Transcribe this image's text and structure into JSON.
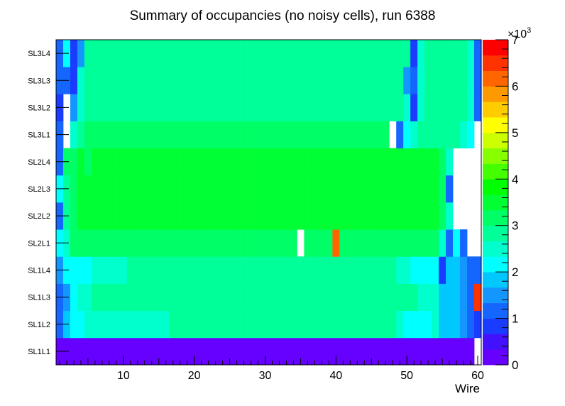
{
  "chart_data": {
    "type": "heatmap",
    "title": "Summary of occupancies (no noisy cells), run 6388",
    "xlabel": "Wire",
    "ylabel": "",
    "xlim": [
      0.5,
      60.5
    ],
    "x_ticks": [
      10,
      20,
      30,
      40,
      50,
      60
    ],
    "y_categories": [
      "SL1L1",
      "SL1L2",
      "SL1L3",
      "SL1L4",
      "SL2L1",
      "SL2L2",
      "SL2L3",
      "SL2L4",
      "SL3L1",
      "SL3L2",
      "SL3L3",
      "SL3L4"
    ],
    "z_range": [
      0,
      7000
    ],
    "z_multiplier_label": "×10",
    "z_multiplier_exponent": "3",
    "z_ticks": [
      0,
      1,
      2,
      3,
      4,
      5,
      6,
      7
    ],
    "palette": [
      "#6600ff",
      "#4411ff",
      "#1a3cff",
      "#1466ff",
      "#1496ff",
      "#00c8ff",
      "#00ffff",
      "#00ffcc",
      "#00ff99",
      "#00ff66",
      "#00ff33",
      "#00ff00",
      "#44ff00",
      "#88ff00",
      "#ccff00",
      "#ffff00",
      "#ffcc00",
      "#ff9900",
      "#ff6600",
      "#ff3300",
      "#ff0000"
    ],
    "rows": [
      {
        "layer": "SL1L1",
        "values": [
          300,
          300,
          300,
          300,
          300,
          300,
          300,
          300,
          300,
          300,
          300,
          300,
          300,
          300,
          300,
          300,
          300,
          300,
          300,
          300,
          300,
          300,
          300,
          300,
          300,
          300,
          300,
          300,
          300,
          300,
          300,
          300,
          300,
          300,
          300,
          300,
          300,
          300,
          300,
          300,
          300,
          300,
          300,
          300,
          300,
          300,
          300,
          300,
          300,
          300,
          300,
          300,
          300,
          300,
          300,
          300,
          300,
          300,
          300,
          null
        ]
      },
      {
        "layer": "SL1L2",
        "values": [
          1200,
          1700,
          2000,
          2000,
          2400,
          2400,
          2400,
          2600,
          2600,
          2600,
          2600,
          2600,
          2600,
          2600,
          2600,
          2400,
          2700,
          2700,
          2700,
          2700,
          2700,
          2700,
          2700,
          2700,
          2700,
          2700,
          2700,
          2700,
          2700,
          2700,
          2700,
          2700,
          2700,
          2700,
          2700,
          2700,
          2700,
          2700,
          2700,
          2700,
          2700,
          2700,
          2700,
          2700,
          2700,
          2700,
          2700,
          2700,
          2400,
          2000,
          2000,
          2000,
          2000,
          2400,
          1800,
          1700,
          1700,
          1500,
          1200,
          700
        ]
      },
      {
        "layer": "SL1L3",
        "values": [
          1100,
          1500,
          2000,
          2400,
          2400,
          2700,
          2700,
          2700,
          2700,
          2700,
          2700,
          2700,
          2700,
          2700,
          2700,
          2700,
          2700,
          2700,
          2700,
          2700,
          2700,
          2700,
          2700,
          2700,
          2700,
          2700,
          2700,
          2700,
          2700,
          2700,
          2700,
          2700,
          2700,
          2700,
          2700,
          2700,
          2700,
          2700,
          2700,
          2700,
          2700,
          2700,
          2700,
          2700,
          2700,
          2700,
          2700,
          2700,
          2700,
          2700,
          2700,
          2400,
          2400,
          2400,
          1800,
          1700,
          1700,
          1500,
          1200,
          6500
        ]
      },
      {
        "layer": "SL1L4",
        "values": [
          1500,
          2000,
          2200,
          2200,
          2300,
          2400,
          2400,
          2400,
          2400,
          2500,
          2700,
          2700,
          2700,
          2700,
          2700,
          2700,
          2700,
          2700,
          2700,
          2700,
          2700,
          2700,
          2700,
          2700,
          2700,
          2700,
          2700,
          2700,
          2700,
          2700,
          2700,
          2700,
          2700,
          2700,
          2700,
          2700,
          2700,
          2700,
          2700,
          2700,
          2700,
          2700,
          2700,
          2700,
          2700,
          2700,
          2700,
          2700,
          2400,
          2400,
          2300,
          2200,
          2200,
          2200,
          700,
          1800,
          1700,
          1500,
          1200,
          1000
        ]
      },
      {
        "layer": "SL2L1",
        "values": [
          2200,
          2400,
          3000,
          3000,
          3000,
          3000,
          3000,
          3000,
          3000,
          3000,
          3000,
          3000,
          3000,
          3000,
          3000,
          3000,
          3000,
          3000,
          3000,
          3000,
          3000,
          3000,
          3000,
          3000,
          3000,
          3000,
          3000,
          3000,
          3000,
          3000,
          3000,
          3000,
          3000,
          3000,
          null,
          3000,
          3000,
          3000,
          3000,
          6000,
          3000,
          3000,
          3000,
          3000,
          3000,
          3000,
          3000,
          3000,
          3000,
          3000,
          3000,
          3000,
          3000,
          3000,
          2400,
          1200,
          2000,
          1200,
          null,
          null
        ]
      },
      {
        "layer": "SL2L2",
        "values": [
          1300,
          2800,
          3000,
          3600,
          3600,
          3600,
          3600,
          3600,
          3600,
          3600,
          3600,
          3600,
          3600,
          3600,
          3600,
          3600,
          3600,
          3600,
          3600,
          3600,
          3600,
          3600,
          3600,
          3600,
          3600,
          3600,
          3600,
          3600,
          3600,
          3600,
          3600,
          3600,
          3600,
          3600,
          3600,
          3600,
          3600,
          3600,
          3600,
          3600,
          3600,
          3600,
          3600,
          3600,
          3600,
          3600,
          3600,
          3600,
          3600,
          3600,
          3600,
          3600,
          3600,
          3600,
          3000,
          2400,
          null,
          null,
          null,
          null
        ]
      },
      {
        "layer": "SL2L3",
        "values": [
          2000,
          2800,
          3000,
          3600,
          3600,
          3600,
          3600,
          3600,
          3600,
          3600,
          3600,
          3600,
          3600,
          3600,
          3600,
          3600,
          3600,
          3600,
          3600,
          3600,
          3600,
          3600,
          3600,
          3600,
          3600,
          3600,
          3600,
          3600,
          3600,
          3600,
          3600,
          3600,
          3600,
          3600,
          3600,
          3600,
          3600,
          3600,
          3600,
          3600,
          3600,
          3600,
          3600,
          3600,
          3600,
          3600,
          3600,
          3600,
          3600,
          3600,
          3600,
          3600,
          3600,
          3600,
          3000,
          1200,
          null,
          null,
          null,
          null
        ]
      },
      {
        "layer": "SL2L4",
        "values": [
          1000,
          3000,
          3000,
          3600,
          3000,
          3600,
          3600,
          3600,
          3600,
          3600,
          3600,
          3600,
          3600,
          3600,
          3600,
          3600,
          3600,
          3600,
          3600,
          3600,
          3600,
          3600,
          3600,
          3600,
          3600,
          3600,
          3600,
          3600,
          3600,
          3600,
          3600,
          3600,
          3600,
          3600,
          3600,
          3600,
          3600,
          3600,
          3600,
          3600,
          3600,
          3600,
          3600,
          3600,
          3600,
          3600,
          3600,
          3600,
          3600,
          3600,
          3600,
          3600,
          3600,
          3600,
          3000,
          2400,
          null,
          null,
          null,
          null
        ]
      },
      {
        "layer": "SL3L1",
        "values": [
          1100,
          null,
          2600,
          2700,
          3000,
          3000,
          3000,
          3000,
          3000,
          3000,
          3000,
          3000,
          3000,
          3000,
          3000,
          3000,
          3000,
          3000,
          3000,
          3000,
          3000,
          3000,
          3000,
          3000,
          3000,
          3000,
          3000,
          3000,
          3000,
          3000,
          3000,
          3000,
          3000,
          3000,
          3000,
          3000,
          3000,
          3000,
          3000,
          3000,
          3000,
          3000,
          3000,
          3000,
          3000,
          3000,
          3000,
          null,
          1200,
          2000,
          2600,
          2700,
          2700,
          2700,
          2700,
          2700,
          2700,
          2600,
          2000,
          null
        ]
      },
      {
        "layer": "SL3L2",
        "values": [
          700,
          null,
          1500,
          2600,
          2700,
          2700,
          2700,
          2700,
          2700,
          2700,
          2700,
          2700,
          2700,
          2700,
          2700,
          2700,
          2700,
          2700,
          2700,
          2700,
          2700,
          2700,
          2700,
          2700,
          2700,
          2700,
          2700,
          2700,
          2700,
          2700,
          2700,
          2700,
          2700,
          2700,
          2700,
          2700,
          2700,
          2700,
          2700,
          2700,
          2700,
          2700,
          2700,
          2700,
          2700,
          2700,
          2700,
          2700,
          2700,
          2600,
          800,
          2600,
          2700,
          2700,
          2700,
          2700,
          2700,
          2700,
          2600,
          1200
        ]
      },
      {
        "layer": "SL3L3",
        "values": [
          1000,
          1000,
          800,
          2400,
          2700,
          2700,
          2700,
          2700,
          2700,
          2700,
          2700,
          2700,
          2700,
          2700,
          2700,
          2700,
          2700,
          2700,
          2700,
          2700,
          2700,
          2700,
          2700,
          2700,
          2700,
          2700,
          2700,
          2700,
          2700,
          2700,
          2700,
          2700,
          2700,
          2700,
          2700,
          2700,
          2700,
          2700,
          2700,
          2700,
          2700,
          2700,
          2700,
          2700,
          2700,
          2700,
          2700,
          2700,
          2700,
          1500,
          1100,
          2600,
          2700,
          2700,
          2700,
          2700,
          2700,
          2700,
          2600,
          1200
        ]
      },
      {
        "layer": "SL3L4",
        "values": [
          1200,
          2000,
          800,
          1500,
          2700,
          2700,
          2700,
          2700,
          2700,
          2700,
          2700,
          2700,
          2700,
          2700,
          2700,
          2700,
          2700,
          2700,
          2700,
          2700,
          2700,
          2700,
          2700,
          2700,
          2700,
          2700,
          2700,
          2700,
          2700,
          2700,
          2700,
          2700,
          2700,
          2700,
          2700,
          2700,
          2700,
          2700,
          2700,
          2700,
          2700,
          2700,
          2700,
          2700,
          2700,
          2700,
          2700,
          2700,
          2700,
          2700,
          800,
          2400,
          2700,
          2700,
          2700,
          2700,
          2700,
          2700,
          2400,
          1000
        ]
      }
    ]
  }
}
